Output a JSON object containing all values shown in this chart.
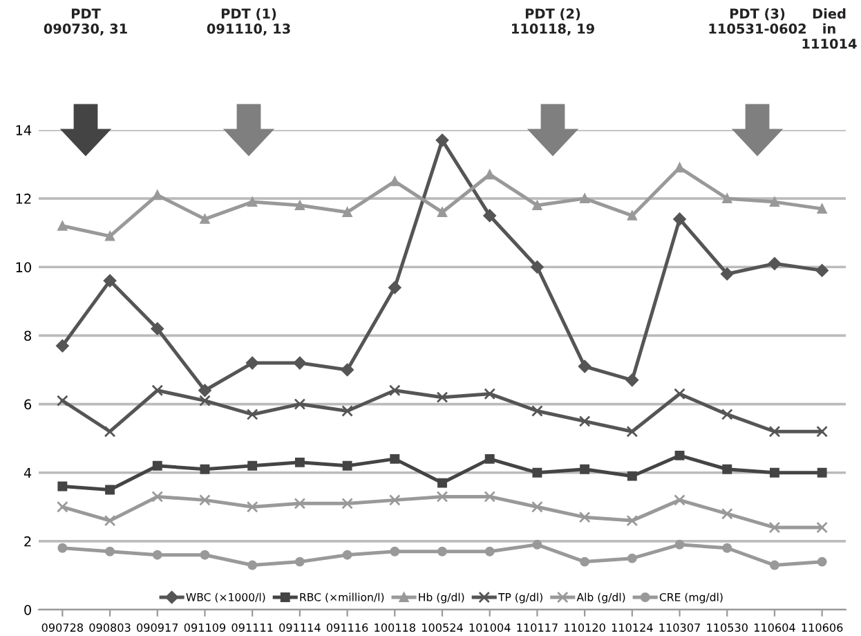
{
  "chart_data": {
    "type": "line",
    "annotations": [
      "PDT\n090730, 31",
      "PDT (1)\n091110, 13",
      "PDT (2)\n110118, 19",
      "PDT (3)\n110531-0602",
      "Died\nin\n111014"
    ],
    "categories": [
      "090728",
      "090803",
      "090917",
      "091109",
      "091111",
      "091114",
      "091116",
      "100118",
      "100524",
      "101004",
      "110117",
      "110120",
      "110124",
      "110307",
      "110530",
      "110604",
      "110606"
    ],
    "series": [
      {
        "name": "WBC (×1000/l)",
        "color": "#555555",
        "marker": "diamond",
        "values": [
          7.7,
          9.6,
          8.2,
          6.4,
          7.2,
          7.2,
          7.0,
          9.4,
          13.7,
          11.5,
          10.0,
          7.1,
          6.7,
          11.4,
          9.8,
          10.1,
          9.9
        ]
      },
      {
        "name": "RBC (×million/l)",
        "color": "#444444",
        "marker": "square",
        "values": [
          3.6,
          3.5,
          4.2,
          4.1,
          4.2,
          4.3,
          4.2,
          4.4,
          3.7,
          4.4,
          4.0,
          4.1,
          3.9,
          4.5,
          4.1,
          4.0,
          4.0
        ]
      },
      {
        "name": "Hb (g/dl)",
        "color": "#999999",
        "marker": "triangle",
        "values": [
          11.2,
          10.9,
          12.1,
          11.4,
          11.9,
          11.8,
          11.6,
          12.5,
          11.6,
          12.7,
          11.8,
          12.0,
          11.5,
          12.9,
          12.0,
          11.9,
          11.7
        ]
      },
      {
        "name": "TP (g/dl)",
        "color": "#555555",
        "marker": "cross",
        "values": [
          6.1,
          5.2,
          6.4,
          6.1,
          5.7,
          6.0,
          5.8,
          6.4,
          6.2,
          6.3,
          5.8,
          5.5,
          5.2,
          6.3,
          5.7,
          5.2,
          5.2
        ]
      },
      {
        "name": "Alb (g/dl)",
        "color": "#999999",
        "marker": "cross",
        "values": [
          3.0,
          2.6,
          3.3,
          3.2,
          3.0,
          3.1,
          3.1,
          3.2,
          3.3,
          3.3,
          3.0,
          2.7,
          2.6,
          3.2,
          2.8,
          2.4,
          2.4
        ]
      },
      {
        "name": "CRE (mg/dl)",
        "color": "#999999",
        "marker": "circle",
        "values": [
          1.8,
          1.7,
          1.6,
          1.6,
          1.3,
          1.4,
          1.6,
          1.7,
          1.7,
          1.7,
          1.9,
          1.4,
          1.5,
          1.9,
          1.8,
          1.3,
          1.4
        ]
      }
    ],
    "ylim": [
      0,
      14
    ],
    "yticks": [
      0,
      2,
      4,
      6,
      8,
      10,
      12,
      14
    ],
    "grid": "y",
    "legend": "bottom"
  }
}
